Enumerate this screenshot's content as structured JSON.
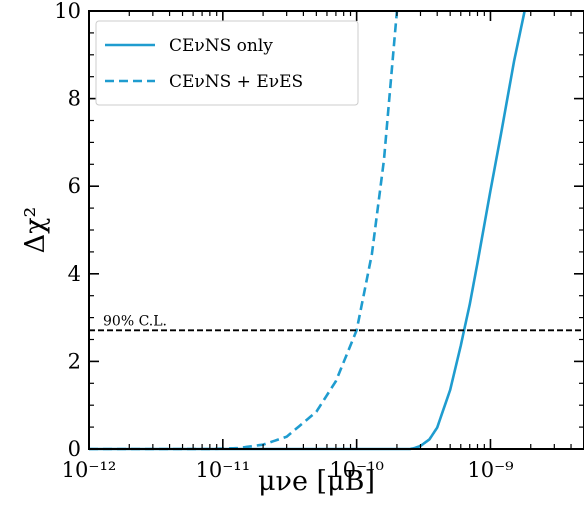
{
  "chart_data": {
    "type": "line",
    "xscale": "log",
    "xlim": [
      1e-12,
      5e-09
    ],
    "ylim": [
      0,
      10
    ],
    "xlabel": "μνe [μB]",
    "ylabel": "Δχ²",
    "x_ticks": [
      {
        "value": 1e-12,
        "label": "10⁻¹²"
      },
      {
        "value": 1e-11,
        "label": "10⁻¹¹"
      },
      {
        "value": 1e-10,
        "label": "10⁻¹⁰"
      },
      {
        "value": 1e-09,
        "label": "10⁻⁹"
      }
    ],
    "y_ticks": [
      0,
      2,
      4,
      6,
      8,
      10
    ],
    "grid": false,
    "legend_position": "top-left",
    "series": [
      {
        "name": "CEνNS only",
        "style": "solid",
        "color": "#1f9ccf",
        "x": [
          1e-12,
          1e-10,
          2.5e-10,
          2.7e-10,
          3e-10,
          3.5e-10,
          4e-10,
          5e-10,
          6e-10,
          6.35e-10,
          7e-10,
          8e-10,
          1e-09,
          1.2e-09,
          1.5e-09,
          1.8e-09
        ],
        "y": [
          0,
          0,
          0,
          0.02,
          0.07,
          0.22,
          0.49,
          1.35,
          2.36,
          2.71,
          3.3,
          4.25,
          5.9,
          7.2,
          8.85,
          10
        ]
      },
      {
        "name": "CEνNS + EνES",
        "style": "dashed",
        "color": "#1f9ccf",
        "x": [
          1e-12,
          8e-12,
          1.3e-11,
          2e-11,
          3e-11,
          5e-11,
          7e-11,
          1e-10,
          1.3e-10,
          1.6e-10,
          2e-10
        ],
        "y": [
          0,
          0,
          0.02,
          0.1,
          0.28,
          0.85,
          1.55,
          2.71,
          4.45,
          6.6,
          10
        ]
      }
    ],
    "reference_lines": [
      {
        "type": "horizontal",
        "y": 2.71,
        "style": "dashed",
        "color": "#000000",
        "label": "90% C.L."
      }
    ]
  }
}
